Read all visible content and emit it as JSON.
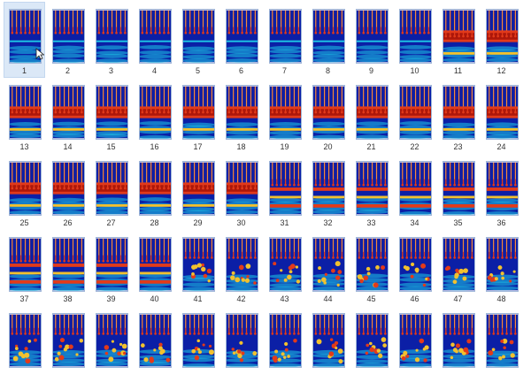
{
  "selected_item": "1",
  "colors": {
    "background": "#ffffff",
    "selection": "#dbe8f7",
    "thumb_border": "#9fb6d8",
    "map_low": "#0b1fa6",
    "map_mid": "#1ec8e6",
    "map_high": "#e23a1a",
    "map_peak": "#8b0000"
  },
  "thumbnails": [
    {
      "label": "1",
      "pattern": "spikes"
    },
    {
      "label": "2",
      "pattern": "spikes"
    },
    {
      "label": "3",
      "pattern": "spikes"
    },
    {
      "label": "4",
      "pattern": "spikes"
    },
    {
      "label": "5",
      "pattern": "spikes"
    },
    {
      "label": "6",
      "pattern": "spikes"
    },
    {
      "label": "7",
      "pattern": "spikes"
    },
    {
      "label": "8",
      "pattern": "spikes"
    },
    {
      "label": "9",
      "pattern": "spikes"
    },
    {
      "label": "10",
      "pattern": "spikes"
    },
    {
      "label": "11",
      "pattern": "dense"
    },
    {
      "label": "12",
      "pattern": "dense"
    },
    {
      "label": "13",
      "pattern": "dense"
    },
    {
      "label": "14",
      "pattern": "dense"
    },
    {
      "label": "15",
      "pattern": "dense"
    },
    {
      "label": "16",
      "pattern": "dense"
    },
    {
      "label": "17",
      "pattern": "dense"
    },
    {
      "label": "18",
      "pattern": "dense"
    },
    {
      "label": "19",
      "pattern": "dense"
    },
    {
      "label": "20",
      "pattern": "dense"
    },
    {
      "label": "21",
      "pattern": "dense"
    },
    {
      "label": "22",
      "pattern": "dense"
    },
    {
      "label": "23",
      "pattern": "dense"
    },
    {
      "label": "24",
      "pattern": "dense"
    },
    {
      "label": "25",
      "pattern": "dense"
    },
    {
      "label": "26",
      "pattern": "dense"
    },
    {
      "label": "27",
      "pattern": "dense"
    },
    {
      "label": "28",
      "pattern": "dense"
    },
    {
      "label": "29",
      "pattern": "dense"
    },
    {
      "label": "30",
      "pattern": "dense"
    },
    {
      "label": "31",
      "pattern": "banded"
    },
    {
      "label": "32",
      "pattern": "banded"
    },
    {
      "label": "33",
      "pattern": "banded"
    },
    {
      "label": "34",
      "pattern": "banded"
    },
    {
      "label": "35",
      "pattern": "banded"
    },
    {
      "label": "36",
      "pattern": "banded"
    },
    {
      "label": "37",
      "pattern": "banded"
    },
    {
      "label": "38",
      "pattern": "banded"
    },
    {
      "label": "39",
      "pattern": "banded"
    },
    {
      "label": "40",
      "pattern": "banded"
    },
    {
      "label": "41",
      "pattern": "scattered"
    },
    {
      "label": "42",
      "pattern": "scattered"
    },
    {
      "label": "43",
      "pattern": "scattered"
    },
    {
      "label": "44",
      "pattern": "scattered"
    },
    {
      "label": "45",
      "pattern": "scattered"
    },
    {
      "label": "46",
      "pattern": "scattered"
    },
    {
      "label": "47",
      "pattern": "scattered"
    },
    {
      "label": "48",
      "pattern": "scattered"
    },
    {
      "label": "",
      "pattern": "scattered"
    },
    {
      "label": "",
      "pattern": "scattered"
    },
    {
      "label": "",
      "pattern": "scattered"
    },
    {
      "label": "",
      "pattern": "scattered"
    },
    {
      "label": "",
      "pattern": "scattered"
    },
    {
      "label": "",
      "pattern": "scattered"
    },
    {
      "label": "",
      "pattern": "scattered"
    },
    {
      "label": "",
      "pattern": "scattered"
    },
    {
      "label": "",
      "pattern": "scattered"
    },
    {
      "label": "",
      "pattern": "scattered"
    },
    {
      "label": "",
      "pattern": "scattered"
    },
    {
      "label": "",
      "pattern": "scattered"
    }
  ]
}
